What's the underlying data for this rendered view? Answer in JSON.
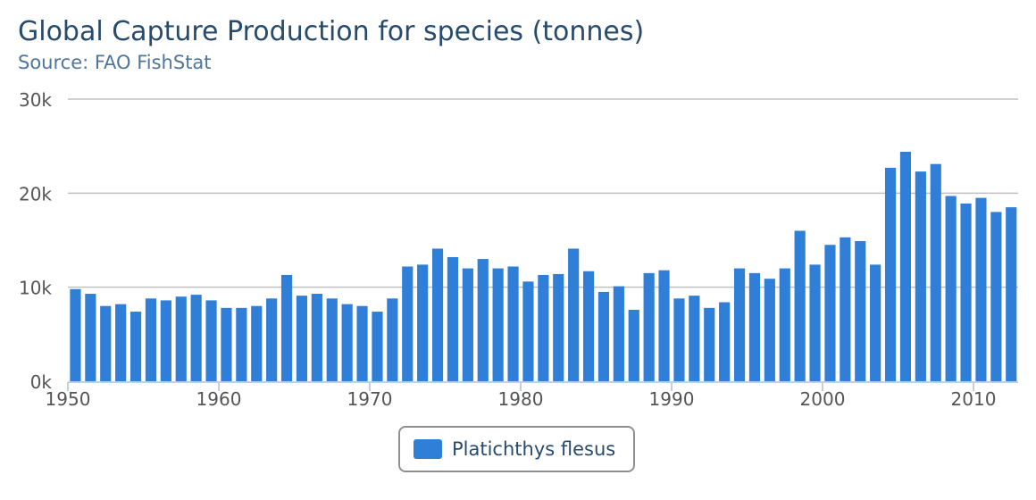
{
  "title": "Global Capture Production for species (tonnes)",
  "subtitle": "Source: FAO FishStat",
  "colors": {
    "bar": "#2f7ed8",
    "grid": "#c0c0c0",
    "axis": "#c0d0e0",
    "tick_text": "#555555"
  },
  "chart_data": {
    "type": "bar",
    "title": "Global Capture Production for species (tonnes)",
    "subtitle": "Source: FAO FishStat",
    "xlabel": "",
    "ylabel": "",
    "ylim": [
      0,
      30000
    ],
    "xlim": [
      1950,
      2012
    ],
    "grid": true,
    "legend_position": "bottom-center",
    "y_ticks": [
      {
        "value": 0,
        "label": "0k"
      },
      {
        "value": 10000,
        "label": "10k"
      },
      {
        "value": 20000,
        "label": "20k"
      },
      {
        "value": 30000,
        "label": "30k"
      }
    ],
    "x_ticks": [
      {
        "value": 1950,
        "label": "1950"
      },
      {
        "value": 1960,
        "label": "1960"
      },
      {
        "value": 1970,
        "label": "1970"
      },
      {
        "value": 1980,
        "label": "1980"
      },
      {
        "value": 1990,
        "label": "1990"
      },
      {
        "value": 2000,
        "label": "2000"
      },
      {
        "value": 2010,
        "label": "2010"
      }
    ],
    "categories": [
      1950,
      1951,
      1952,
      1953,
      1954,
      1955,
      1956,
      1957,
      1958,
      1959,
      1960,
      1961,
      1962,
      1963,
      1964,
      1965,
      1966,
      1967,
      1968,
      1969,
      1970,
      1971,
      1972,
      1973,
      1974,
      1975,
      1976,
      1977,
      1978,
      1979,
      1980,
      1981,
      1982,
      1983,
      1984,
      1985,
      1986,
      1987,
      1988,
      1989,
      1990,
      1991,
      1992,
      1993,
      1994,
      1995,
      1996,
      1997,
      1998,
      1999,
      2000,
      2001,
      2002,
      2003,
      2004,
      2005,
      2006,
      2007,
      2008,
      2009,
      2010,
      2011,
      2012
    ],
    "series": [
      {
        "name": "Platichthys flesus",
        "values": [
          9800,
          9300,
          8000,
          8200,
          7400,
          8800,
          8600,
          9000,
          9200,
          8600,
          7800,
          7800,
          8000,
          8800,
          11300,
          9100,
          9300,
          8800,
          8200,
          8000,
          7400,
          8800,
          12200,
          12400,
          14100,
          13200,
          12000,
          13000,
          12000,
          12200,
          10600,
          11300,
          11400,
          14100,
          11700,
          9500,
          10100,
          7600,
          11500,
          11800,
          8800,
          9100,
          7800,
          8400,
          12000,
          11500,
          10900,
          12000,
          16000,
          12400,
          14500,
          15300,
          14900,
          12400,
          22700,
          24400,
          22300,
          23100,
          19700,
          18900,
          19500,
          18000,
          18500
        ]
      }
    ]
  }
}
